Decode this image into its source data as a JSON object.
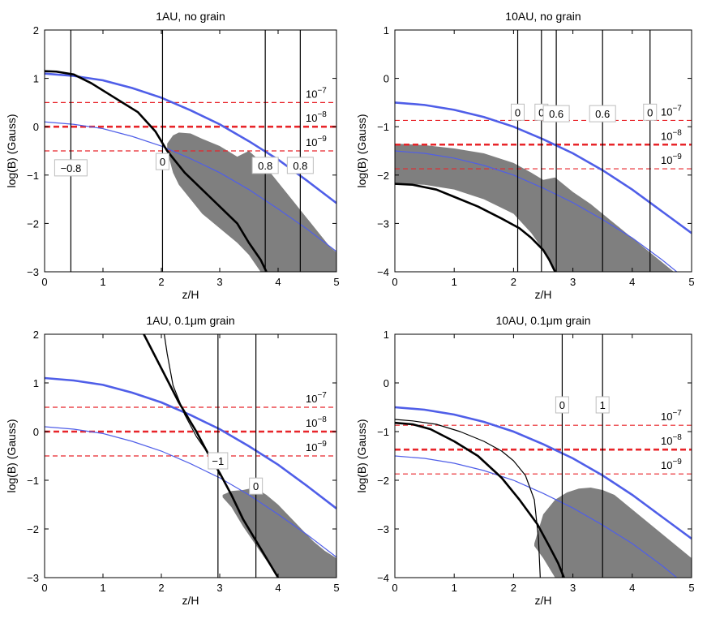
{
  "figure": {
    "background": "#ffffff",
    "colors": {
      "field_thick": "#4f5ee8",
      "field_thin": "#4f5ee8",
      "reference_dashed": "#e8252a",
      "shaded_region": "#7f7f7f",
      "curves": "#000000"
    }
  },
  "chart_data": [
    {
      "type": "line",
      "title": "1AU, no grain",
      "xlabel": "z/H",
      "ylabel": "log(B) (Gauss)",
      "xlim": [
        0,
        5
      ],
      "ylim": [
        -3,
        2
      ],
      "xticks": [
        "0",
        "1",
        "2",
        "3",
        "4",
        "5"
      ],
      "yticks": [
        "-3",
        "-2",
        "-1",
        "0",
        "1",
        "2"
      ],
      "field_thick": {
        "x": [
          0,
          0.5,
          1,
          1.5,
          2,
          2.5,
          3,
          3.5,
          4,
          4.5,
          5
        ],
        "y": [
          1.1,
          1.05,
          0.96,
          0.8,
          0.6,
          0.34,
          0.05,
          -0.3,
          -0.68,
          -1.12,
          -1.58
        ]
      },
      "field_thin": {
        "x": [
          0,
          0.5,
          1,
          1.5,
          2,
          2.5,
          3,
          3.5,
          4,
          4.5,
          5
        ],
        "y": [
          0.1,
          0.05,
          -0.04,
          -0.2,
          -0.4,
          -0.66,
          -0.95,
          -1.3,
          -1.7,
          -2.12,
          -2.58
        ]
      },
      "reference_lines": [
        {
          "label": "10^-7",
          "base": "10",
          "exp": "−7",
          "y": 0.5,
          "style": "dashed"
        },
        {
          "label": "10^-8",
          "base": "10",
          "exp": "−8",
          "y": 0,
          "style": "thick-dashed"
        },
        {
          "label": "10^-9",
          "base": "10",
          "exp": "−9",
          "y": -0.5,
          "style": "dashed"
        }
      ],
      "black_curves": [
        {
          "x": [
            0,
            0.2,
            0.5,
            0.8,
            1.2,
            1.6,
            1.9,
            2.1,
            2.4,
            2.7,
            3.0,
            3.3,
            3.5,
            3.7,
            3.8
          ],
          "y": [
            1.15,
            1.14,
            1.08,
            0.9,
            0.6,
            0.3,
            -0.1,
            -0.5,
            -0.95,
            -1.3,
            -1.65,
            -2.0,
            -2.4,
            -2.75,
            -3.0
          ],
          "width": 2.6
        }
      ],
      "vertical_lines": [
        {
          "x": 0.45,
          "label": "−0.8",
          "label_y": -0.85
        },
        {
          "x": 2.02,
          "label": "0",
          "label_y": -0.72
        },
        {
          "x": 3.78,
          "label": "0.8",
          "label_y": -0.8
        },
        {
          "x": 4.38,
          "label": "0.8",
          "label_y": -0.8
        }
      ],
      "shaded_region": {
        "x": [
          2.1,
          2.2,
          2.3,
          2.5,
          2.7,
          3.0,
          3.3,
          3.5,
          3.7,
          3.9,
          4.1,
          4.3,
          4.5,
          4.7,
          4.9,
          5.0
        ],
        "top": [
          -0.35,
          -0.18,
          -0.12,
          -0.14,
          -0.25,
          -0.4,
          -0.62,
          -0.5,
          -0.72,
          -1.0,
          -1.3,
          -1.6,
          -1.9,
          -2.2,
          -2.5,
          -2.6
        ],
        "bottom": [
          -0.5,
          -0.95,
          -1.2,
          -1.5,
          -1.8,
          -2.1,
          -2.4,
          -2.65,
          -3.0,
          -3.0,
          -3.0,
          -3.0,
          -3.0,
          -3.0,
          -3.0,
          -3.0
        ]
      }
    },
    {
      "type": "line",
      "title": "10AU, no grain",
      "xlabel": "z/H",
      "ylabel": "log(B) (Gauss)",
      "xlim": [
        0,
        5
      ],
      "ylim": [
        -4,
        1
      ],
      "xticks": [
        "0",
        "1",
        "2",
        "3",
        "4",
        "5"
      ],
      "yticks": [
        "-4",
        "-3",
        "-2",
        "-1",
        "0",
        "1"
      ],
      "field_thick": {
        "x": [
          0,
          0.5,
          1,
          1.5,
          2,
          2.5,
          3,
          3.5,
          4,
          4.5,
          5
        ],
        "y": [
          -0.5,
          -0.55,
          -0.65,
          -0.8,
          -1.0,
          -1.26,
          -1.55,
          -1.9,
          -2.3,
          -2.75,
          -3.2
        ]
      },
      "field_thin": {
        "x": [
          0,
          0.5,
          1,
          1.5,
          2,
          2.5,
          3,
          3.5,
          4,
          4.5,
          4.75
        ],
        "y": [
          -1.5,
          -1.55,
          -1.65,
          -1.8,
          -2.0,
          -2.27,
          -2.57,
          -2.92,
          -3.3,
          -3.75,
          -4.0
        ]
      },
      "reference_lines": [
        {
          "label": "10^-7",
          "base": "10",
          "exp": "−7",
          "y": -0.87,
          "style": "dashed"
        },
        {
          "label": "10^-8",
          "base": "10",
          "exp": "−8",
          "y": -1.37,
          "style": "thick-dashed"
        },
        {
          "label": "10^-9",
          "base": "10",
          "exp": "−9",
          "y": -1.87,
          "style": "dashed"
        }
      ],
      "black_curves": [
        {
          "x": [
            0,
            0.3,
            0.7,
            1.0,
            1.4,
            1.8,
            2.1,
            2.3,
            2.5,
            2.6,
            2.7
          ],
          "y": [
            -2.18,
            -2.2,
            -2.3,
            -2.45,
            -2.65,
            -2.9,
            -3.1,
            -3.3,
            -3.55,
            -3.75,
            -4.0
          ],
          "width": 2.6
        }
      ],
      "vertical_lines": [
        {
          "x": 2.07,
          "label": "0",
          "label_y": -0.7
        },
        {
          "x": 2.47,
          "label": "0",
          "label_y": -0.7
        },
        {
          "x": 2.72,
          "label": "0.6",
          "label_y": -0.73
        },
        {
          "x": 3.5,
          "label": "0.6",
          "label_y": -0.73
        },
        {
          "x": 4.3,
          "label": "0",
          "label_y": -0.7
        }
      ],
      "shaded_region": {
        "x": [
          0,
          0.5,
          1.0,
          1.5,
          2.0,
          2.3,
          2.5,
          2.7,
          3.0,
          3.3,
          3.6,
          3.9,
          4.2,
          4.5,
          4.7
        ],
        "top": [
          -1.35,
          -1.38,
          -1.45,
          -1.55,
          -1.75,
          -1.95,
          -2.1,
          -2.05,
          -2.35,
          -2.6,
          -2.9,
          -3.2,
          -3.5,
          -3.8,
          -4.0
        ],
        "bottom": [
          -2.18,
          -2.2,
          -2.3,
          -2.5,
          -2.8,
          -3.2,
          -3.55,
          -4.0,
          -4.0,
          -4.0,
          -4.0,
          -4.0,
          -4.0,
          -4.0,
          -4.0
        ]
      }
    },
    {
      "type": "line",
      "title": "1AU, 0.1μm grain",
      "xlabel": "z/H",
      "ylabel": "log(B) (Gauss)",
      "xlim": [
        0,
        5
      ],
      "ylim": [
        -3,
        2
      ],
      "xticks": [
        "0",
        "1",
        "2",
        "3",
        "4",
        "5"
      ],
      "yticks": [
        "-3",
        "-2",
        "-1",
        "0",
        "1",
        "2"
      ],
      "field_thick": {
        "x": [
          0,
          0.5,
          1,
          1.5,
          2,
          2.5,
          3,
          3.5,
          4,
          4.5,
          5
        ],
        "y": [
          1.1,
          1.05,
          0.96,
          0.8,
          0.6,
          0.34,
          0.05,
          -0.3,
          -0.68,
          -1.12,
          -1.58
        ]
      },
      "field_thin": {
        "x": [
          0,
          0.5,
          1,
          1.5,
          2,
          2.5,
          3,
          3.5,
          4,
          4.5,
          5
        ],
        "y": [
          0.1,
          0.05,
          -0.04,
          -0.2,
          -0.4,
          -0.66,
          -0.95,
          -1.3,
          -1.7,
          -2.12,
          -2.58
        ]
      },
      "reference_lines": [
        {
          "label": "10^-7",
          "base": "10",
          "exp": "−7",
          "y": 0.5,
          "style": "dashed"
        },
        {
          "label": "10^-8",
          "base": "10",
          "exp": "−8",
          "y": 0,
          "style": "thick-dashed"
        },
        {
          "label": "10^-9",
          "base": "10",
          "exp": "−9",
          "y": -0.5,
          "style": "dashed"
        }
      ],
      "black_curves": [
        {
          "x": [
            1.7,
            2.0,
            2.3,
            2.6,
            2.8,
            3.0,
            3.2,
            3.4,
            3.6,
            3.8,
            4.0
          ],
          "y": [
            2.0,
            1.3,
            0.6,
            0.0,
            -0.45,
            -0.85,
            -1.3,
            -1.8,
            -2.2,
            -2.6,
            -3.0
          ],
          "width": 2.6
        },
        {
          "x": [
            2.05,
            2.1,
            2.2,
            2.4,
            2.6,
            2.8,
            2.95,
            3.0
          ],
          "y": [
            2.0,
            1.6,
            0.95,
            0.35,
            -0.1,
            -0.45,
            -0.75,
            -0.9
          ],
          "width": 1.2
        }
      ],
      "vertical_lines": [
        {
          "x": 2.97,
          "label": "−1",
          "label_y": -0.6
        },
        {
          "x": 3.62,
          "label": "0",
          "label_y": -1.12
        }
      ],
      "shaded_region": {
        "x": [
          3.05,
          3.2,
          3.4,
          3.6,
          3.8,
          4.0,
          4.2,
          4.4,
          4.6,
          4.8,
          5.0
        ],
        "top": [
          -1.3,
          -1.22,
          -1.2,
          -1.15,
          -1.3,
          -1.5,
          -1.75,
          -2.0,
          -2.25,
          -2.45,
          -2.6
        ],
        "bottom": [
          -1.35,
          -1.55,
          -1.95,
          -2.3,
          -2.65,
          -3.0,
          -3.0,
          -3.0,
          -3.0,
          -3.0,
          -3.0
        ]
      }
    },
    {
      "type": "line",
      "title": "10AU, 0.1μm grain",
      "xlabel": "z/H",
      "ylabel": "log(B) (Gauss)",
      "xlim": [
        0,
        5
      ],
      "ylim": [
        -4,
        1
      ],
      "xticks": [
        "0",
        "1",
        "2",
        "3",
        "4",
        "5"
      ],
      "yticks": [
        "-4",
        "-3",
        "-2",
        "-1",
        "0",
        "1"
      ],
      "field_thick": {
        "x": [
          0,
          0.5,
          1,
          1.5,
          2,
          2.5,
          3,
          3.5,
          4,
          4.5,
          5
        ],
        "y": [
          -0.5,
          -0.55,
          -0.65,
          -0.8,
          -1.0,
          -1.26,
          -1.55,
          -1.9,
          -2.3,
          -2.75,
          -3.2
        ]
      },
      "field_thin": {
        "x": [
          0,
          0.5,
          1,
          1.5,
          2,
          2.5,
          3,
          3.5,
          4,
          4.5,
          4.75
        ],
        "y": [
          -1.5,
          -1.55,
          -1.65,
          -1.8,
          -2.0,
          -2.27,
          -2.57,
          -2.92,
          -3.3,
          -3.75,
          -4.0
        ]
      },
      "reference_lines": [
        {
          "label": "10^-7",
          "base": "10",
          "exp": "−7",
          "y": -0.87,
          "style": "dashed"
        },
        {
          "label": "10^-8",
          "base": "10",
          "exp": "−8",
          "y": -1.37,
          "style": "thick-dashed"
        },
        {
          "label": "10^-9",
          "base": "10",
          "exp": "−9",
          "y": -1.87,
          "style": "dashed"
        }
      ],
      "black_curves": [
        {
          "x": [
            0,
            0.3,
            0.6,
            1.0,
            1.4,
            1.8,
            2.1,
            2.4,
            2.6,
            2.75,
            2.85
          ],
          "y": [
            -0.82,
            -0.85,
            -0.95,
            -1.2,
            -1.5,
            -1.95,
            -2.4,
            -2.9,
            -3.35,
            -3.7,
            -4.0
          ],
          "width": 2.6
        },
        {
          "x": [
            0,
            0.3,
            0.7,
            1.1,
            1.5,
            1.8,
            2.0,
            2.2,
            2.35,
            2.42,
            2.45
          ],
          "y": [
            -0.75,
            -0.78,
            -0.85,
            -1.0,
            -1.2,
            -1.4,
            -1.6,
            -1.9,
            -2.4,
            -3.2,
            -4.0
          ],
          "width": 1.2
        }
      ],
      "vertical_lines": [
        {
          "x": 2.82,
          "label": "0",
          "label_y": -0.45
        },
        {
          "x": 3.5,
          "label": "1",
          "label_y": -0.45
        }
      ],
      "shaded_region": {
        "x": [
          2.35,
          2.5,
          2.7,
          2.9,
          3.1,
          3.3,
          3.5,
          3.7,
          3.9,
          4.1,
          4.3,
          4.5,
          4.7,
          4.9,
          5.0
        ],
        "top": [
          -3.3,
          -2.7,
          -2.4,
          -2.25,
          -2.17,
          -2.15,
          -2.2,
          -2.3,
          -2.5,
          -2.7,
          -2.9,
          -3.1,
          -3.3,
          -3.5,
          -3.6
        ],
        "bottom": [
          -3.35,
          -3.6,
          -4.0,
          -4.0,
          -4.0,
          -4.0,
          -4.0,
          -4.0,
          -4.0,
          -4.0,
          -4.0,
          -4.0,
          -4.0,
          -4.0,
          -4.0
        ]
      }
    }
  ]
}
